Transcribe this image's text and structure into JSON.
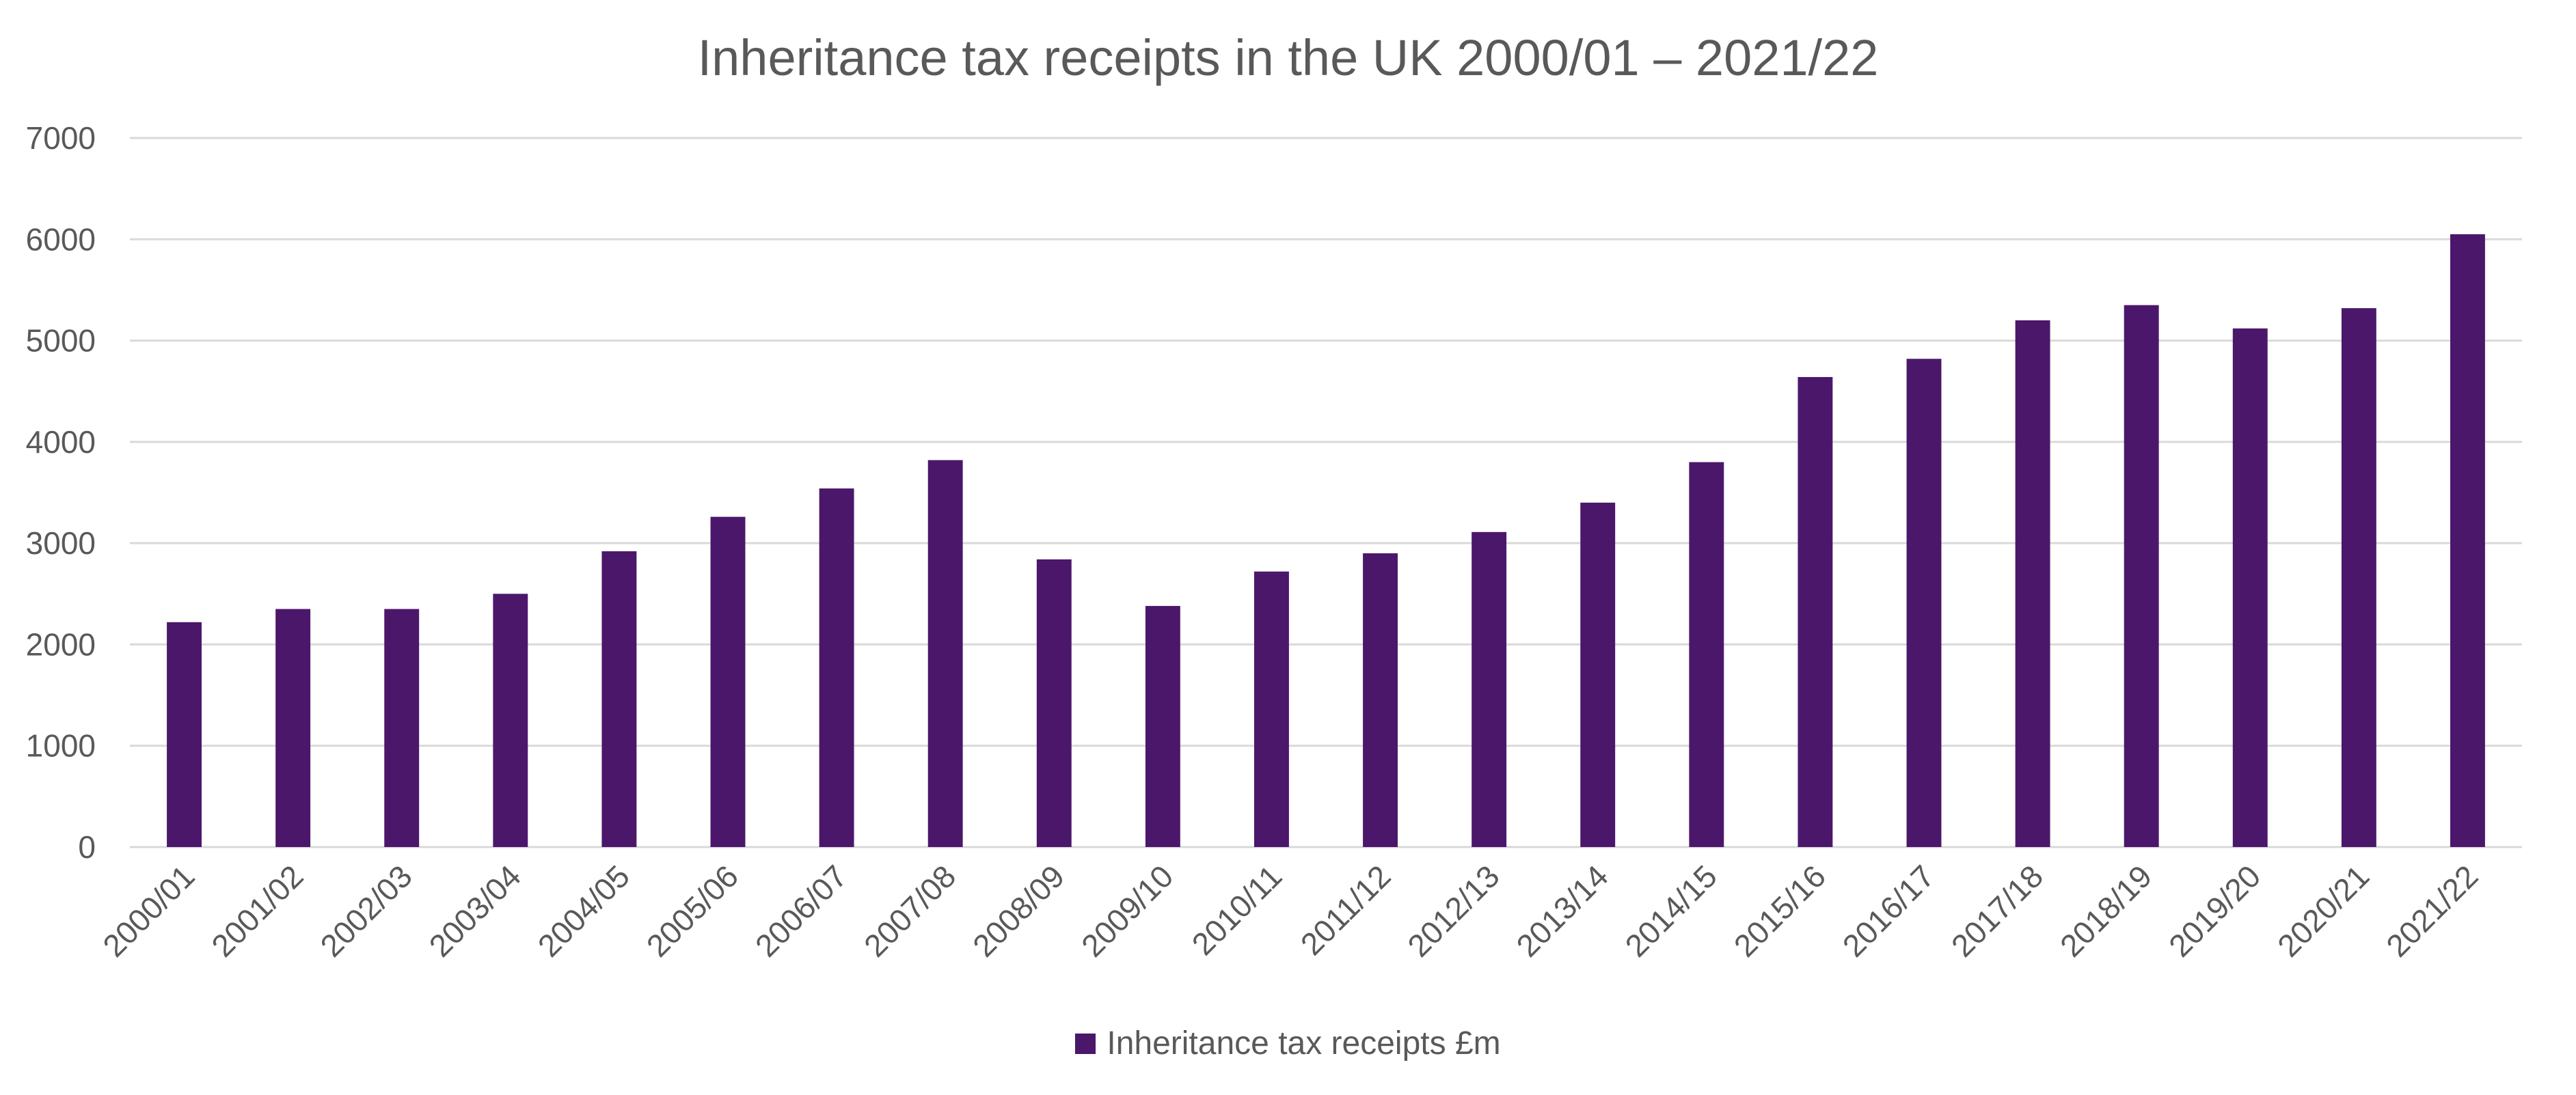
{
  "colors": {
    "bar": "#4B176B",
    "grid": "#D9D9D9",
    "text": "#595959"
  },
  "chart_data": {
    "type": "bar",
    "title": "Inheritance tax receipts in the UK 2000/01 – 2021/22",
    "xlabel": "",
    "ylabel": "",
    "ylim": [
      0,
      7000
    ],
    "yticks": [
      0,
      1000,
      2000,
      3000,
      4000,
      5000,
      6000,
      7000
    ],
    "grid": true,
    "legend_position": "bottom",
    "categories": [
      "2000/01",
      "2001/02",
      "2002/03",
      "2003/04",
      "2004/05",
      "2005/06",
      "2006/07",
      "2007/08",
      "2008/09",
      "2009/10",
      "2010/11",
      "2011/12",
      "2012/13",
      "2013/14",
      "2014/15",
      "2015/16",
      "2016/17",
      "2017/18",
      "2018/19",
      "2019/20",
      "2020/21",
      "2021/22"
    ],
    "series": [
      {
        "name": "Inheritance tax receipts £m",
        "values": [
          2220,
          2350,
          2350,
          2500,
          2920,
          3260,
          3540,
          3820,
          2840,
          2380,
          2720,
          2900,
          3110,
          3400,
          3800,
          4640,
          4820,
          5200,
          5350,
          5120,
          5320,
          6050
        ]
      }
    ]
  }
}
